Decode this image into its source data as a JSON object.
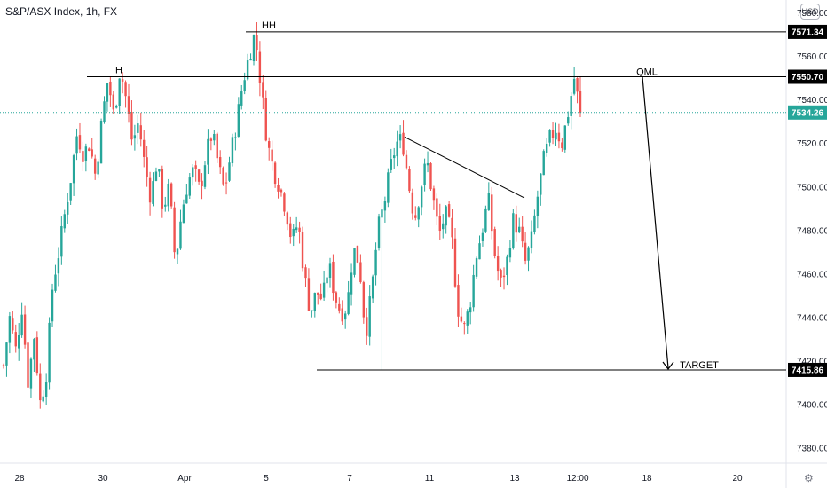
{
  "title": "S&P/ASX Index, 1h, FX",
  "currency_button": "USD",
  "settings_icon": "gear-icon",
  "colors": {
    "up": "#26a69a",
    "down": "#ef5350",
    "current": "#26a69a",
    "level_tag": "#000000"
  },
  "chart_data": {
    "type": "candlestick",
    "title": "S&P/ASX Index, 1h, FX",
    "x_tick_labels": [
      "28",
      "30",
      "Apr",
      "5",
      "7",
      "11",
      "13",
      "12:00",
      "18",
      "20"
    ],
    "y_tick_labels": [
      7580.0,
      7560.0,
      7540.0,
      7520.0,
      7500.0,
      7480.0,
      7460.0,
      7440.0,
      7420.0,
      7400.0,
      7380.0
    ],
    "ylim": [
      7373,
      7586
    ],
    "grid": false,
    "price_tags": [
      {
        "value": "7571.34",
        "kind": "level"
      },
      {
        "value": "7550.70",
        "kind": "level"
      },
      {
        "value": "7534.26",
        "kind": "current"
      },
      {
        "value": "7415.86",
        "kind": "level"
      }
    ],
    "annotations": [
      {
        "label": "HH",
        "level": 7571.34
      },
      {
        "label": "H",
        "level": 7550.7
      },
      {
        "label": "QML",
        "level": 7550.7
      },
      {
        "label": "TARGET",
        "level": 7415.86
      }
    ],
    "trendline": {
      "from": 7523,
      "to": 7495
    },
    "price_path": [
      7418,
      7440,
      7425,
      7445,
      7410,
      7432,
      7400,
      7415,
      7455,
      7470,
      7488,
      7505,
      7525,
      7515,
      7520,
      7505,
      7530,
      7550,
      7532,
      7555,
      7540,
      7520,
      7530,
      7510,
      7495,
      7512,
      7490,
      7500,
      7465,
      7488,
      7502,
      7508,
      7498,
      7515,
      7525,
      7510,
      7498,
      7515,
      7530,
      7548,
      7560,
      7571,
      7545,
      7520,
      7508,
      7500,
      7490,
      7475,
      7484,
      7460,
      7442,
      7452,
      7448,
      7465,
      7450,
      7442,
      7445,
      7472,
      7465,
      7432,
      7452,
      7480,
      7492,
      7508,
      7520,
      7522,
      7502,
      7485,
      7500,
      7512,
      7495,
      7478,
      7488,
      7478,
      7445,
      7434,
      7446,
      7468,
      7480,
      7495,
      7470,
      7455,
      7465,
      7485,
      7480,
      7465,
      7475,
      7495,
      7512,
      7522,
      7527,
      7520,
      7534,
      7550,
      7534
    ]
  }
}
